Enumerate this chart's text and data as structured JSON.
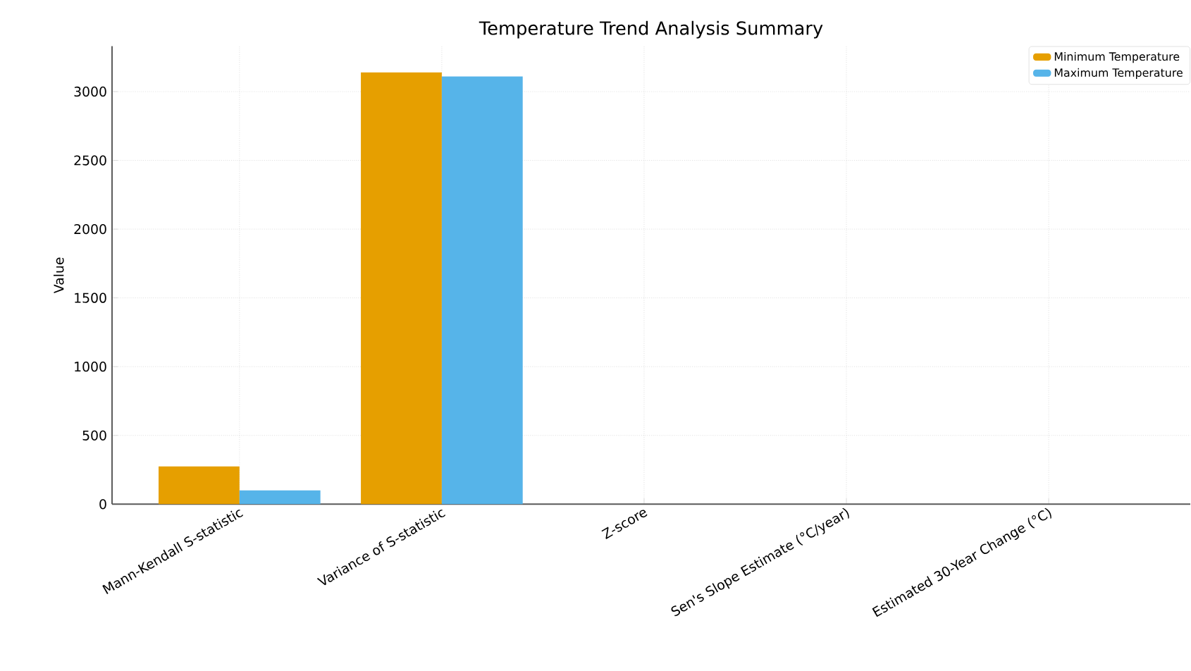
{
  "chart_data": {
    "type": "bar",
    "title": "Temperature Trend Analysis Summary",
    "ylabel": "Value",
    "categories": [
      "Mann-Kendall S-statistic",
      "Variance of S-statistic",
      "Z-score",
      "Sen's Slope Estimate (°C/year)",
      "Estimated 30-Year Change (°C)"
    ],
    "series": [
      {
        "name": "Minimum Temperature",
        "color": "#e69f00",
        "values": [
          275,
          3140,
          0,
          0,
          0
        ]
      },
      {
        "name": "Maximum Temperature",
        "color": "#56b4e9",
        "values": [
          100,
          3110,
          0,
          0,
          0
        ]
      }
    ],
    "ylim": [
      0,
      3330
    ],
    "yticks": [
      0,
      500,
      1000,
      1500,
      2000,
      2500,
      3000
    ],
    "grid": true,
    "legend": "top right"
  }
}
